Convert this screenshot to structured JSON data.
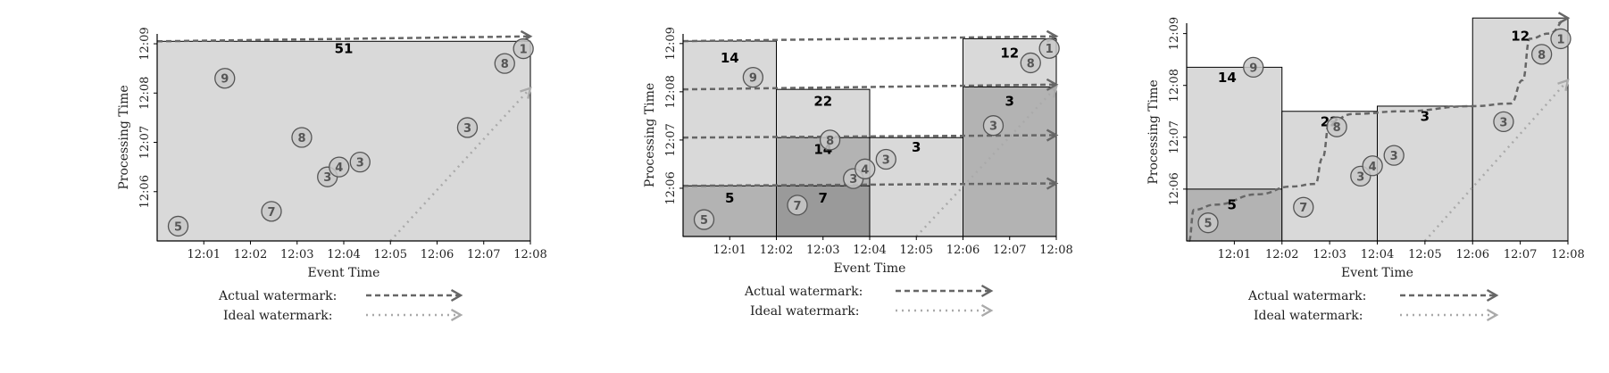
{
  "chart_data": [
    {
      "type": "scatter",
      "panel": "global",
      "xlabel": "Event Time",
      "ylabel": "Processing Time",
      "xlim": [
        0,
        8
      ],
      "ylim": [
        5,
        9.2
      ],
      "x_ticks": [
        "12:01",
        "12:02",
        "12:03",
        "12:04",
        "12:05",
        "12:06",
        "12:07",
        "12:08"
      ],
      "y_ticks": [
        "12:06",
        "12:07",
        "12:08",
        "12:09"
      ],
      "background_color": "#d9d9d9",
      "points": [
        {
          "x": 0.45,
          "y": 5.3,
          "value": "5"
        },
        {
          "x": 1.45,
          "y": 8.3,
          "value": "9"
        },
        {
          "x": 2.45,
          "y": 5.6,
          "value": "7"
        },
        {
          "x": 3.1,
          "y": 7.1,
          "value": "8"
        },
        {
          "x": 3.65,
          "y": 6.3,
          "value": "3"
        },
        {
          "x": 3.9,
          "y": 6.5,
          "value": "4"
        },
        {
          "x": 4.35,
          "y": 6.6,
          "value": "3"
        },
        {
          "x": 6.65,
          "y": 7.3,
          "value": "3"
        },
        {
          "x": 7.45,
          "y": 8.6,
          "value": "8"
        },
        {
          "x": 7.85,
          "y": 8.9,
          "value": "1"
        }
      ],
      "sum_labels": [
        {
          "x": 4.0,
          "y": 8.9,
          "text": "51"
        }
      ],
      "boxes": [
        {
          "x0": 0,
          "x1": 8,
          "y0": 5,
          "y1": 9.05,
          "shade": "#d9d9d9"
        }
      ],
      "actual_watermark": [
        [
          0,
          9.05
        ],
        [
          8,
          9.15
        ]
      ],
      "ideal_watermark": [
        [
          5,
          5
        ],
        [
          8,
          8.1
        ]
      ]
    },
    {
      "type": "scatter",
      "panel": "fixed-windows-heuristic",
      "xlabel": "Event Time",
      "ylabel": "Processing Time",
      "xlim": [
        0,
        8
      ],
      "ylim": [
        5,
        9.2
      ],
      "x_ticks": [
        "12:01",
        "12:02",
        "12:03",
        "12:04",
        "12:05",
        "12:06",
        "12:07",
        "12:08"
      ],
      "y_ticks": [
        "12:06",
        "12:07",
        "12:08",
        "12:09"
      ],
      "points": [
        {
          "x": 0.45,
          "y": 5.35,
          "value": "5"
        },
        {
          "x": 1.5,
          "y": 8.3,
          "value": "9"
        },
        {
          "x": 2.45,
          "y": 5.65,
          "value": "7"
        },
        {
          "x": 3.15,
          "y": 7.0,
          "value": "8"
        },
        {
          "x": 3.65,
          "y": 6.2,
          "value": "3"
        },
        {
          "x": 3.9,
          "y": 6.4,
          "value": "4"
        },
        {
          "x": 4.35,
          "y": 6.6,
          "value": "3"
        },
        {
          "x": 6.65,
          "y": 7.3,
          "value": "3"
        },
        {
          "x": 7.45,
          "y": 8.6,
          "value": "8"
        },
        {
          "x": 7.85,
          "y": 8.9,
          "value": "1"
        }
      ],
      "sum_labels": [
        {
          "x": 1.0,
          "y": 8.7,
          "text": "14"
        },
        {
          "x": 1.0,
          "y": 5.8,
          "text": "5"
        },
        {
          "x": 3.0,
          "y": 7.8,
          "text": "22"
        },
        {
          "x": 3.0,
          "y": 6.8,
          "text": "14"
        },
        {
          "x": 3.0,
          "y": 5.8,
          "text": "7"
        },
        {
          "x": 5.0,
          "y": 6.85,
          "text": "3"
        },
        {
          "x": 7.0,
          "y": 8.8,
          "text": "12"
        },
        {
          "x": 7.0,
          "y": 7.8,
          "text": "3"
        }
      ],
      "boxes": [
        {
          "x0": 0,
          "x1": 2,
          "y0": 5,
          "y1": 9.05,
          "shade": "#d9d9d9"
        },
        {
          "x0": 0,
          "x1": 2,
          "y0": 5,
          "y1": 6.05,
          "shade": "#b3b3b3"
        },
        {
          "x0": 2,
          "x1": 4,
          "y0": 5,
          "y1": 8.05,
          "shade": "#d9d9d9"
        },
        {
          "x0": 2,
          "x1": 4,
          "y0": 5,
          "y1": 7.05,
          "shade": "#b3b3b3"
        },
        {
          "x0": 2,
          "x1": 4,
          "y0": 5,
          "y1": 6.05,
          "shade": "#9a9a9a"
        },
        {
          "x0": 4,
          "x1": 6,
          "y0": 5,
          "y1": 7.05,
          "shade": "#d9d9d9"
        },
        {
          "x0": 6,
          "x1": 8,
          "y0": 5,
          "y1": 9.1,
          "shade": "#d9d9d9"
        },
        {
          "x0": 6,
          "x1": 8,
          "y0": 5,
          "y1": 8.1,
          "shade": "#b3b3b3"
        }
      ],
      "actual_watermark_segments": [
        [
          [
            0,
            9.05
          ],
          [
            8,
            9.15
          ]
        ],
        [
          [
            0,
            8.05
          ],
          [
            8,
            8.15
          ]
        ],
        [
          [
            0,
            7.05
          ],
          [
            8,
            7.1
          ]
        ],
        [
          [
            0,
            6.05
          ],
          [
            8,
            6.1
          ]
        ]
      ],
      "ideal_watermark": [
        [
          5,
          5
        ],
        [
          8,
          8.1
        ]
      ]
    },
    {
      "type": "scatter",
      "panel": "fixed-windows-watermark",
      "xlabel": "Event Time",
      "ylabel": "Processing Time",
      "xlim": [
        0,
        8
      ],
      "ylim": [
        5,
        9.2
      ],
      "x_ticks": [
        "12:01",
        "12:02",
        "12:03",
        "12:04",
        "12:05",
        "12:06",
        "12:07",
        "12:08"
      ],
      "y_ticks": [
        "12:06",
        "12:07",
        "12:08",
        "12:09"
      ],
      "points": [
        {
          "x": 0.45,
          "y": 5.35,
          "value": "5"
        },
        {
          "x": 1.4,
          "y": 8.35,
          "value": "9"
        },
        {
          "x": 2.45,
          "y": 5.65,
          "value": "7"
        },
        {
          "x": 3.15,
          "y": 7.2,
          "value": "8"
        },
        {
          "x": 3.65,
          "y": 6.25,
          "value": "3"
        },
        {
          "x": 3.9,
          "y": 6.45,
          "value": "4"
        },
        {
          "x": 4.35,
          "y": 6.65,
          "value": "3"
        },
        {
          "x": 6.65,
          "y": 7.3,
          "value": "3"
        },
        {
          "x": 7.45,
          "y": 8.6,
          "value": "8"
        },
        {
          "x": 7.85,
          "y": 8.9,
          "value": "1"
        }
      ],
      "sum_labels": [
        {
          "x": 0.85,
          "y": 8.15,
          "text": "14"
        },
        {
          "x": 0.95,
          "y": 5.7,
          "text": "5"
        },
        {
          "x": 3.0,
          "y": 7.3,
          "text": "22"
        },
        {
          "x": 5.0,
          "y": 7.4,
          "text": "3"
        },
        {
          "x": 7.0,
          "y": 8.95,
          "text": "12"
        }
      ],
      "boxes": [
        {
          "x0": 0,
          "x1": 2,
          "y0": 5,
          "y1": 8.35,
          "shade": "#d9d9d9"
        },
        {
          "x0": 0,
          "x1": 2,
          "y0": 5,
          "y1": 6.0,
          "shade": "#b3b3b3"
        },
        {
          "x0": 2,
          "x1": 4,
          "y0": 5,
          "y1": 7.5,
          "shade": "#d9d9d9"
        },
        {
          "x0": 4,
          "x1": 6,
          "y0": 5,
          "y1": 7.6,
          "shade": "#d9d9d9"
        },
        {
          "x0": 6,
          "x1": 8,
          "y0": 5,
          "y1": 9.3,
          "shade": "#d9d9d9"
        }
      ],
      "actual_watermark": [
        [
          0.05,
          5.0
        ],
        [
          0.15,
          5.6
        ],
        [
          0.6,
          5.7
        ],
        [
          1.5,
          5.9
        ],
        [
          2.2,
          6.05
        ],
        [
          2.7,
          6.1
        ],
        [
          2.85,
          6.6
        ],
        [
          3.0,
          7.3
        ],
        [
          3.5,
          7.45
        ],
        [
          4.5,
          7.5
        ],
        [
          6.0,
          7.6
        ],
        [
          6.8,
          7.65
        ],
        [
          7.05,
          8.1
        ],
        [
          7.2,
          8.9
        ],
        [
          7.6,
          9.0
        ],
        [
          8,
          9.3
        ]
      ],
      "ideal_watermark": [
        [
          5,
          5
        ],
        [
          8,
          8.1
        ]
      ]
    }
  ],
  "legend": {
    "actual_label": "Actual watermark:",
    "ideal_label": "Ideal watermark:"
  },
  "colors": {
    "watermark_actual": "#666666",
    "watermark_ideal": "#aaaaaa",
    "point_fill": "#c8c8c8",
    "point_stroke": "#555555",
    "axis": "#000000"
  }
}
